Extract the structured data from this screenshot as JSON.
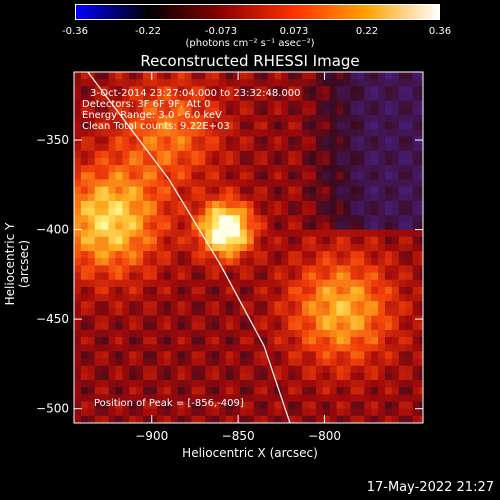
{
  "colorbar": {
    "tick_labels": [
      "-0.36",
      "-0.22",
      "-0.073",
      "0.073",
      "0.22",
      "0.36"
    ],
    "units_label": "(photons cm⁻² s⁻¹ asec⁻²)",
    "range": [
      -0.36,
      0.36
    ],
    "colors": [
      "#0000ff",
      "#000000",
      "#8b0000",
      "#ff3000",
      "#ffa000",
      "#ffffff"
    ]
  },
  "title": "Reconstructed RHESSI Image",
  "info_lines": [
    "3-Oct-2014 23:27:04.000 to 23:32:48.000",
    "Detectors: 3F 6F 9F, Att 0",
    "Energy Range: 3.0 - 6.0 keV",
    "Clean      Total counts: 9.22E+03"
  ],
  "peak_label": "Position of Peak = [-856,-409]",
  "datestamp": "17-May-2022 21:27",
  "chart_data": {
    "type": "heatmap",
    "title": "Reconstructed RHESSI Image",
    "xlabel": "Heliocentric X (arcsec)",
    "ylabel": "Heliocentric Y (arcsec)",
    "xlim": [
      -945,
      -743
    ],
    "ylim": [
      -508,
      -312
    ],
    "x_ticks": [
      -900,
      -850,
      -800
    ],
    "y_ticks": [
      -350,
      -400,
      -450,
      -500
    ],
    "x_tick_labels": [
      "−900",
      "−850",
      "−800"
    ],
    "y_tick_labels": [
      "−350",
      "−400",
      "−450",
      "−500"
    ],
    "peak_position": [
      -856,
      -409
    ],
    "limb_curve": [
      [
        -937,
        -312
      ],
      [
        -890,
        -372
      ],
      [
        -860,
        -420
      ],
      [
        -835,
        -465
      ],
      [
        -820,
        -508
      ]
    ],
    "sources": [
      {
        "x": -857,
        "y": -400,
        "intensity": 0.36
      },
      {
        "x": -925,
        "y": -395,
        "intensity": 0.24
      },
      {
        "x": -790,
        "y": -445,
        "intensity": 0.2
      },
      {
        "x": -890,
        "y": -345,
        "intensity": 0.14
      }
    ]
  }
}
